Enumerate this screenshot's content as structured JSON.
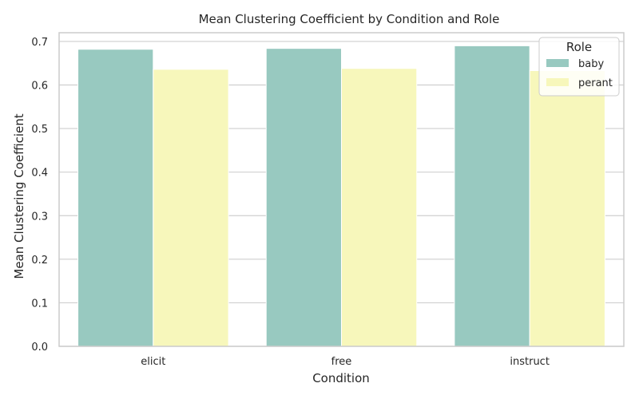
{
  "chart_data": {
    "type": "bar",
    "title": "Mean Clustering Coefficient by Condition and Role",
    "xlabel": "Condition",
    "ylabel": "Mean Clustering Coefficient",
    "categories": [
      "elicit",
      "free",
      "instruct"
    ],
    "series": [
      {
        "name": "baby",
        "values": [
          0.682,
          0.684,
          0.69
        ],
        "color": "#98c9c0"
      },
      {
        "name": "perant",
        "values": [
          0.636,
          0.638,
          0.633
        ],
        "color": "#f7f7bb"
      }
    ],
    "ylim": [
      0,
      0.72
    ],
    "yticks": [
      0.0,
      0.1,
      0.2,
      0.3,
      0.4,
      0.5,
      0.6,
      0.7
    ],
    "ytick_labels": [
      "0.0",
      "0.1",
      "0.2",
      "0.3",
      "0.4",
      "0.5",
      "0.6",
      "0.7"
    ],
    "grid": true,
    "legend": {
      "title": "Role",
      "placement": "top-right"
    }
  },
  "colors": {
    "axes": "#cccccc",
    "grid": "#cfcfcf",
    "text": "#262626"
  }
}
